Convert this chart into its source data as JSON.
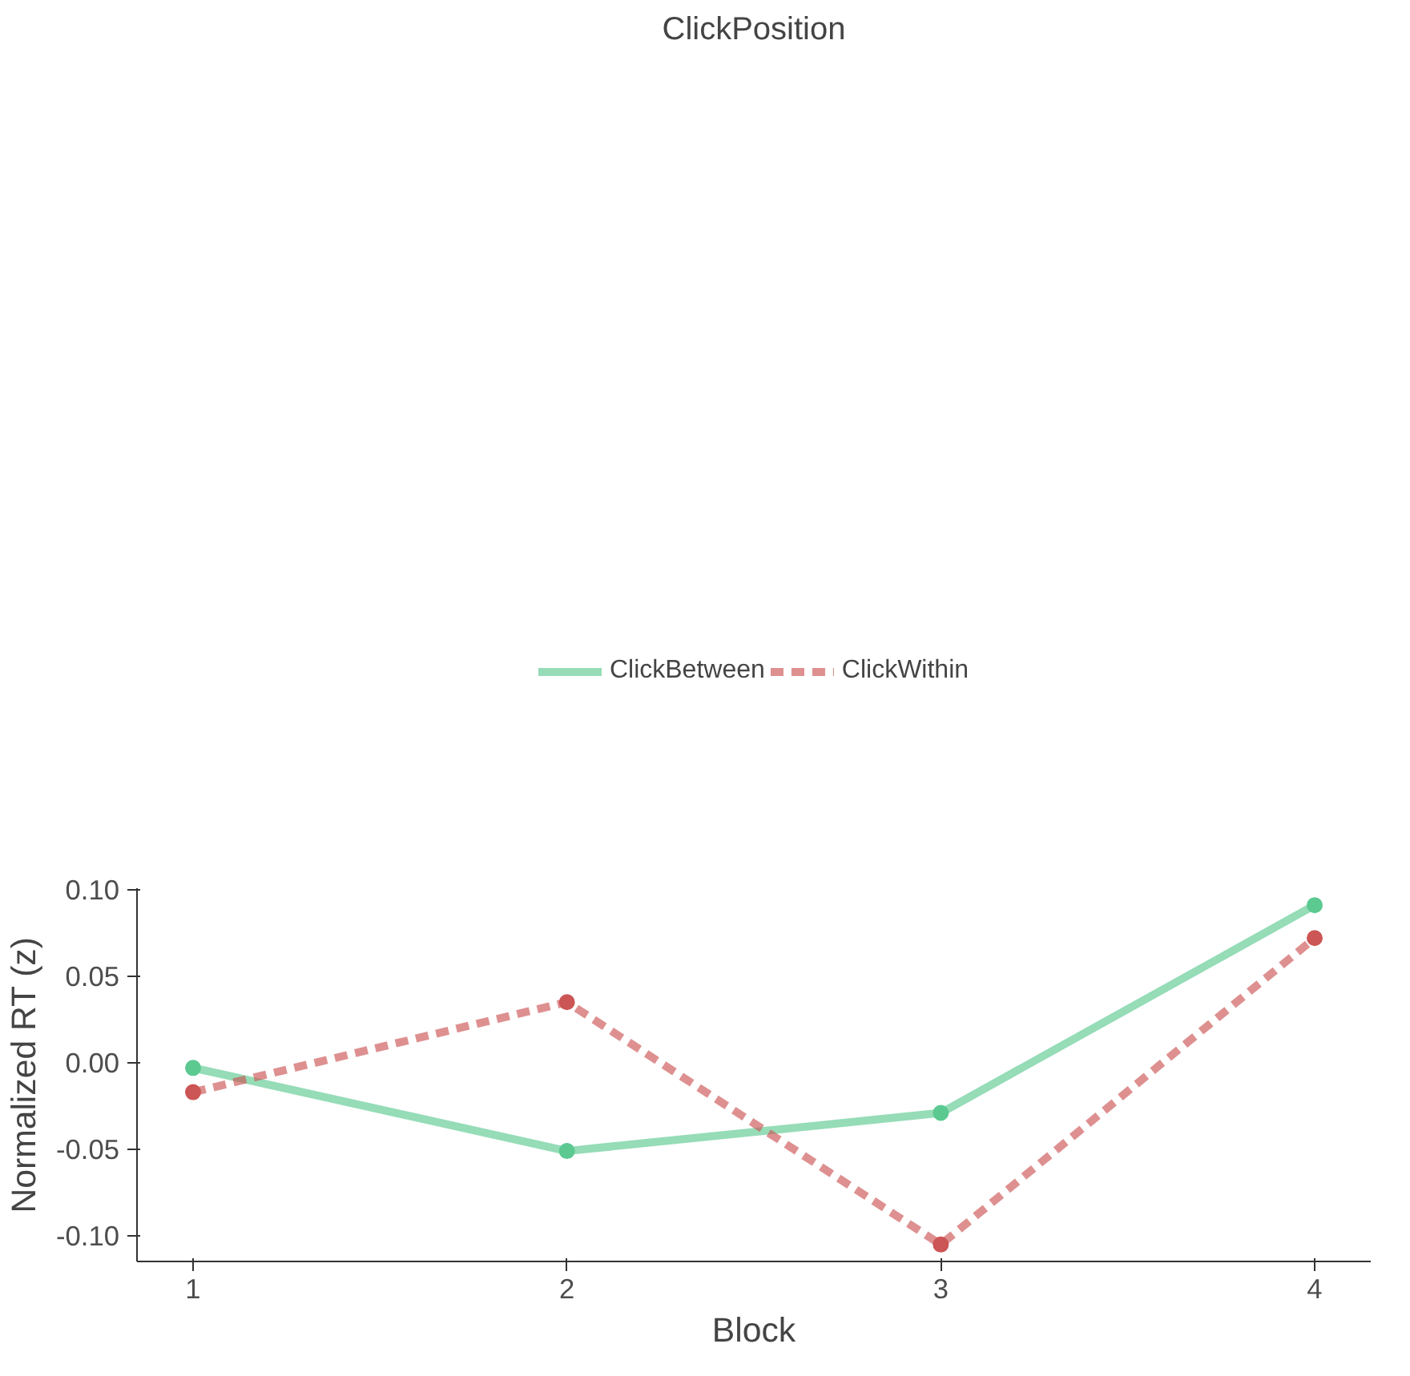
{
  "chart_data": {
    "type": "line",
    "xlabel": "Block",
    "ylabel": "Normalized RT (z)",
    "legend_title": "ClickPosition",
    "legend": "top",
    "grid": false,
    "marker": "circle",
    "x": [
      1,
      2,
      3,
      4
    ],
    "xlim": [
      0.85,
      4.15
    ],
    "xticks": [
      1,
      2,
      3,
      4
    ],
    "ylim": [
      -0.1148,
      0.1008
    ],
    "yticks": [
      {
        "value": -0.1,
        "label": "-0.10"
      },
      {
        "value": -0.05,
        "label": "-0.05"
      },
      {
        "value": 0,
        "label": "0.00"
      },
      {
        "value": 0.05,
        "label": "0.05"
      },
      {
        "value": 0.1,
        "label": "0.10"
      }
    ],
    "series": [
      {
        "name": "ClickBetween",
        "color": "#5cc991",
        "line_style": "solid",
        "values": [
          -0.003,
          -0.051,
          -0.029,
          0.091
        ]
      },
      {
        "name": "ClickWithin",
        "color": "#cc5555",
        "line_style": "dashed",
        "values": [
          -0.017,
          0.035,
          -0.105,
          0.072
        ]
      }
    ]
  }
}
